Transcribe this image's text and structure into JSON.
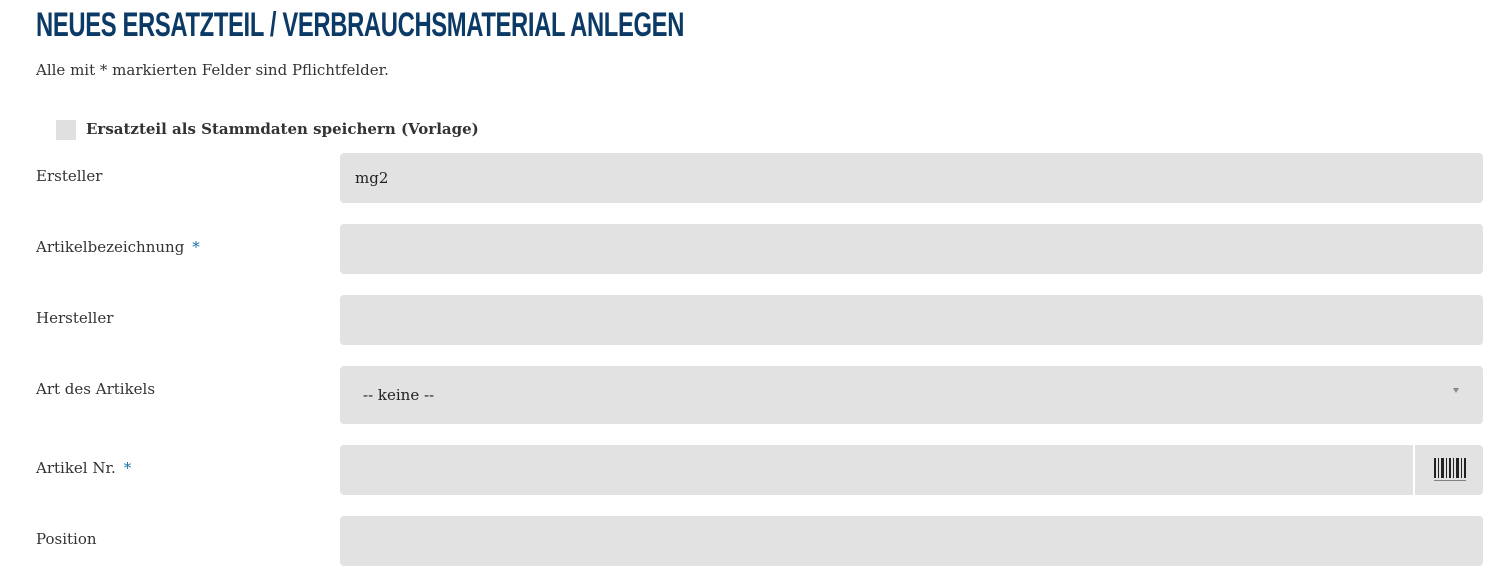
{
  "header": {
    "title": "NEUES ERSATZTEIL / VERBRAUCHSMATERIAL ANLEGEN",
    "subtitle": "Alle mit * markierten Felder sind Pflichtfelder."
  },
  "form": {
    "checkbox_label": "Ersatzteil als Stammdaten speichern (Vorlage)",
    "fields": [
      {
        "label": "Ersteller",
        "value": "mg2"
      },
      {
        "label": "Artikelbezeichnung",
        "marker": "*"
      },
      {
        "label": "Hersteller"
      },
      {
        "label": "Art des Artikels",
        "value": "-- keine --"
      },
      {
        "label": "Artikel Nr.",
        "marker": "*"
      },
      {
        "label": "Position"
      }
    ]
  }
}
